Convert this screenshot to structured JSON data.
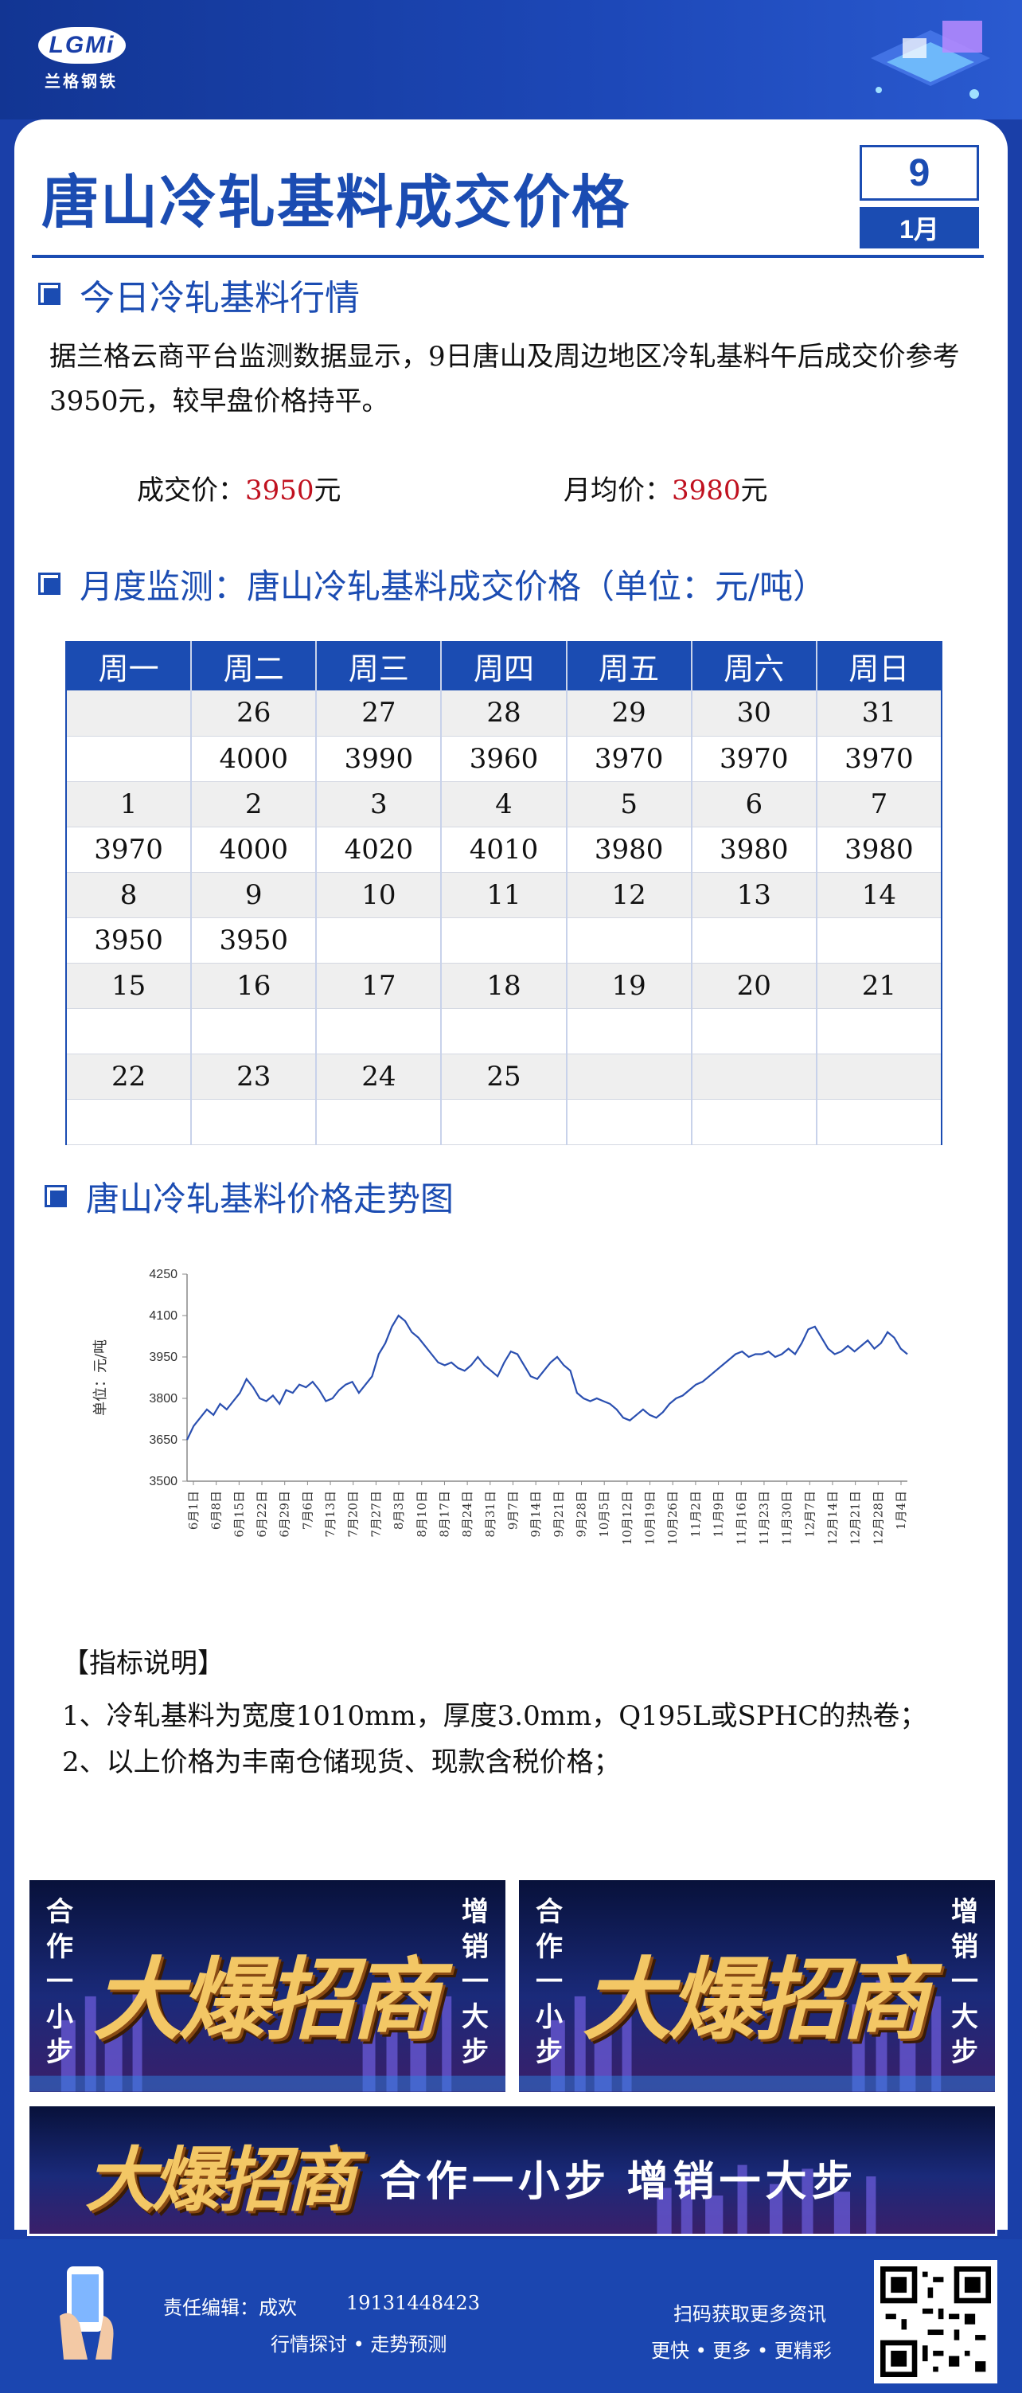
{
  "header": {
    "logo_mark": "LGMi",
    "logo_text": "兰格钢铁",
    "title": "唐山冷轧基料成交价格",
    "date_day": "9",
    "date_month": "1月"
  },
  "today": {
    "heading": "今日冷轧基料行情",
    "paragraph": "据兰格云商平台监测数据显示，9日唐山及周边地区冷轧基料午后成交价参考3950元，较早盘价格持平。",
    "deal_label": "成交价：",
    "deal_value": "3950",
    "deal_unit": "元",
    "avg_label": "月均价：",
    "avg_value": "3980",
    "avg_unit": "元"
  },
  "calendar": {
    "heading": "月度监测：唐山冷轧基料成交价格（单位：元/吨）",
    "weekdays": [
      "周一",
      "周二",
      "周三",
      "周四",
      "周五",
      "周六",
      "周日"
    ],
    "rows": [
      {
        "type": "date",
        "cells": [
          "",
          "26",
          "27",
          "28",
          "29",
          "30",
          "31"
        ]
      },
      {
        "type": "price",
        "cells": [
          {
            "v": "",
            "c": ""
          },
          {
            "v": "4000",
            "c": "red"
          },
          {
            "v": "3990",
            "c": "green"
          },
          {
            "v": "3960",
            "c": "green"
          },
          {
            "v": "3970",
            "c": "red"
          },
          {
            "v": "3970",
            "c": ""
          },
          {
            "v": "3970",
            "c": ""
          }
        ]
      },
      {
        "type": "date",
        "cells": [
          "1",
          "2",
          "3",
          "4",
          "5",
          "6",
          "7"
        ]
      },
      {
        "type": "price",
        "cells": [
          {
            "v": "3970",
            "c": ""
          },
          {
            "v": "4000",
            "c": "red"
          },
          {
            "v": "4020",
            "c": "red"
          },
          {
            "v": "4010",
            "c": "green"
          },
          {
            "v": "3980",
            "c": "green"
          },
          {
            "v": "3980",
            "c": ""
          },
          {
            "v": "3980",
            "c": ""
          }
        ]
      },
      {
        "type": "date",
        "cells": [
          "8",
          "9",
          "10",
          "11",
          "12",
          "13",
          "14"
        ]
      },
      {
        "type": "price",
        "cells": [
          {
            "v": "3950",
            "c": "green"
          },
          {
            "v": "3950",
            "c": ""
          },
          {
            "v": "",
            "c": ""
          },
          {
            "v": "",
            "c": ""
          },
          {
            "v": "",
            "c": ""
          },
          {
            "v": "",
            "c": ""
          },
          {
            "v": "",
            "c": ""
          }
        ]
      },
      {
        "type": "date",
        "cells": [
          "15",
          "16",
          "17",
          "18",
          "19",
          "20",
          "21"
        ]
      },
      {
        "type": "price",
        "cells": [
          {
            "v": "",
            "c": ""
          },
          {
            "v": "",
            "c": ""
          },
          {
            "v": "",
            "c": ""
          },
          {
            "v": "",
            "c": ""
          },
          {
            "v": "",
            "c": ""
          },
          {
            "v": "",
            "c": ""
          },
          {
            "v": "",
            "c": ""
          }
        ]
      },
      {
        "type": "date",
        "cells": [
          "22",
          "23",
          "24",
          "25",
          "",
          "",
          ""
        ]
      },
      {
        "type": "price",
        "cells": [
          {
            "v": "",
            "c": ""
          },
          {
            "v": "",
            "c": ""
          },
          {
            "v": "",
            "c": ""
          },
          {
            "v": "",
            "c": ""
          },
          {
            "v": "",
            "c": ""
          },
          {
            "v": "",
            "c": ""
          },
          {
            "v": "",
            "c": ""
          }
        ]
      }
    ]
  },
  "trend": {
    "heading": "唐山冷轧基料价格走势图"
  },
  "chart_data": {
    "type": "line",
    "title": "",
    "xlabel": "",
    "ylabel": "单位：元/吨",
    "ylim": [
      3500,
      4250
    ],
    "yticks": [
      3500,
      3650,
      3800,
      3950,
      4100,
      4250
    ],
    "xticks": [
      "6月1日",
      "6月8日",
      "6月15日",
      "6月22日",
      "6月29日",
      "7月6日",
      "7月13日",
      "7月20日",
      "7月27日",
      "8月3日",
      "8月10日",
      "8月17日",
      "8月24日",
      "8月31日",
      "9月7日",
      "9月14日",
      "9月21日",
      "9月28日",
      "10月5日",
      "10月12日",
      "10月19日",
      "10月26日",
      "11月2日",
      "11月9日",
      "11月16日",
      "11月23日",
      "11月30日",
      "12月7日",
      "12月14日",
      "12月21日",
      "12月28日",
      "1月4日"
    ],
    "series": [
      {
        "values": [
          3650,
          3700,
          3730,
          3760,
          3740,
          3780,
          3760,
          3790,
          3820,
          3870,
          3840,
          3800,
          3790,
          3810,
          3780,
          3830,
          3820,
          3850,
          3840,
          3860,
          3830,
          3790,
          3800,
          3830,
          3850,
          3860,
          3820,
          3850,
          3880,
          3960,
          4000,
          4060,
          4100,
          4080,
          4040,
          4020,
          3990,
          3960,
          3930,
          3920,
          3930,
          3910,
          3900,
          3920,
          3950,
          3920,
          3900,
          3880,
          3930,
          3970,
          3960,
          3920,
          3880,
          3870,
          3900,
          3930,
          3950,
          3920,
          3900,
          3820,
          3800,
          3790,
          3800,
          3790,
          3780,
          3760,
          3730,
          3720,
          3740,
          3760,
          3740,
          3730,
          3750,
          3780,
          3800,
          3810,
          3830,
          3850,
          3860,
          3880,
          3900,
          3920,
          3940,
          3960,
          3970,
          3950,
          3960,
          3960,
          3970,
          3950,
          3960,
          3980,
          3960,
          4000,
          4050,
          4060,
          4020,
          3980,
          3960,
          3970,
          3990,
          3970,
          3990,
          4010,
          3980,
          4000,
          4040,
          4020,
          3980,
          3960
        ]
      }
    ]
  },
  "notes": {
    "heading": "【指标说明】",
    "line1": "1、冷轧基料为宽度1010mm，厚度3.0mm，Q195L或SPHC的热卷；",
    "line2": "2、以上价格为丰南仓储现货、现款含税价格；"
  },
  "banners": {
    "side_left": "合作一小步",
    "side_right": "增销一大步",
    "big_text": "大爆招商",
    "slogan": "合作一小步  增销一大步"
  },
  "footer": {
    "editor_label": "责任编辑：成欢",
    "phone": "19131448423",
    "tagline": "行情探讨 • 走势预测",
    "scan_text": "扫码获取更多资讯",
    "more_text": "更快 • 更多 • 更精彩"
  },
  "colors": {
    "brand_blue": "#1b4cb2",
    "rise_red": "#c0111f",
    "fall_green": "#0f9a45",
    "line_blue": "#2a4fb0"
  }
}
